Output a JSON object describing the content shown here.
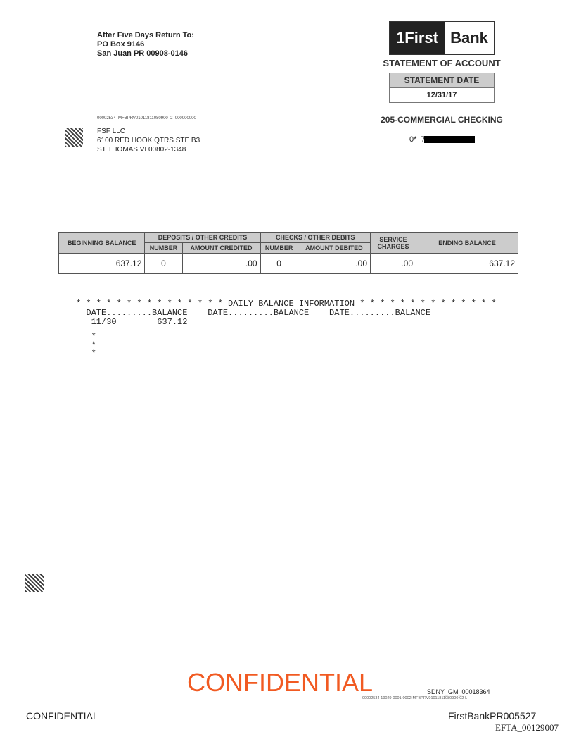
{
  "return_address": {
    "line1": "After Five Days Return To:",
    "line2": "PO Box 9146",
    "line3": "San Juan PR 00908-0146"
  },
  "logo": {
    "left": "1First",
    "right": "Bank"
  },
  "statement_title": "STATEMENT OF ACCOUNT",
  "statement_date": {
    "label": "STATEMENT DATE",
    "value": "12/31/17"
  },
  "account": {
    "type": "205-COMMERCIAL CHECKING",
    "number_prefix": "0*  73"
  },
  "barcode_text": "00002534  MFBPRV01011811080900  2  000000000",
  "addressee": {
    "name": "FSF LLC",
    "line1": "6100 RED HOOK QTRS STE B3",
    "line2": "ST THOMAS VI  00802-1348"
  },
  "summary": {
    "headers": {
      "beginning": "BEGINNING BALANCE",
      "deposits": "DEPOSITS / OTHER CREDITS",
      "checks": "CHECKS / OTHER DEBITS",
      "service": "SERVICE CHARGES",
      "ending": "ENDING BALANCE",
      "number": "NUMBER",
      "amount_credited": "AMOUNT CREDITED",
      "amount_debited": "AMOUNT DEBITED"
    },
    "values": {
      "beginning": "637.12",
      "deposits_number": "0",
      "amount_credited": ".00",
      "checks_number": "0",
      "amount_debited": ".00",
      "service": ".00",
      "ending": "637.12"
    }
  },
  "daily": {
    "title": "* * * * * * * * * * * * * * * DAILY BALANCE INFORMATION * * * * * * * * * * * * * *",
    "header": "  DATE.........BALANCE    DATE.........BALANCE    DATE.........BALANCE",
    "row1": "   11/30        637.12",
    "stars": "   *\n   *\n   *"
  },
  "footer": {
    "confidential_stamp": "CONFIDENTIAL",
    "sdny": "SDNY_GM_00018364",
    "tiny": "00002534-19029-0001-0002-MFBPRV01011811080900-02-L",
    "confidential": "CONFIDENTIAL",
    "bates": "FirstBankPR005527",
    "efta": "EFTA_00129007"
  }
}
